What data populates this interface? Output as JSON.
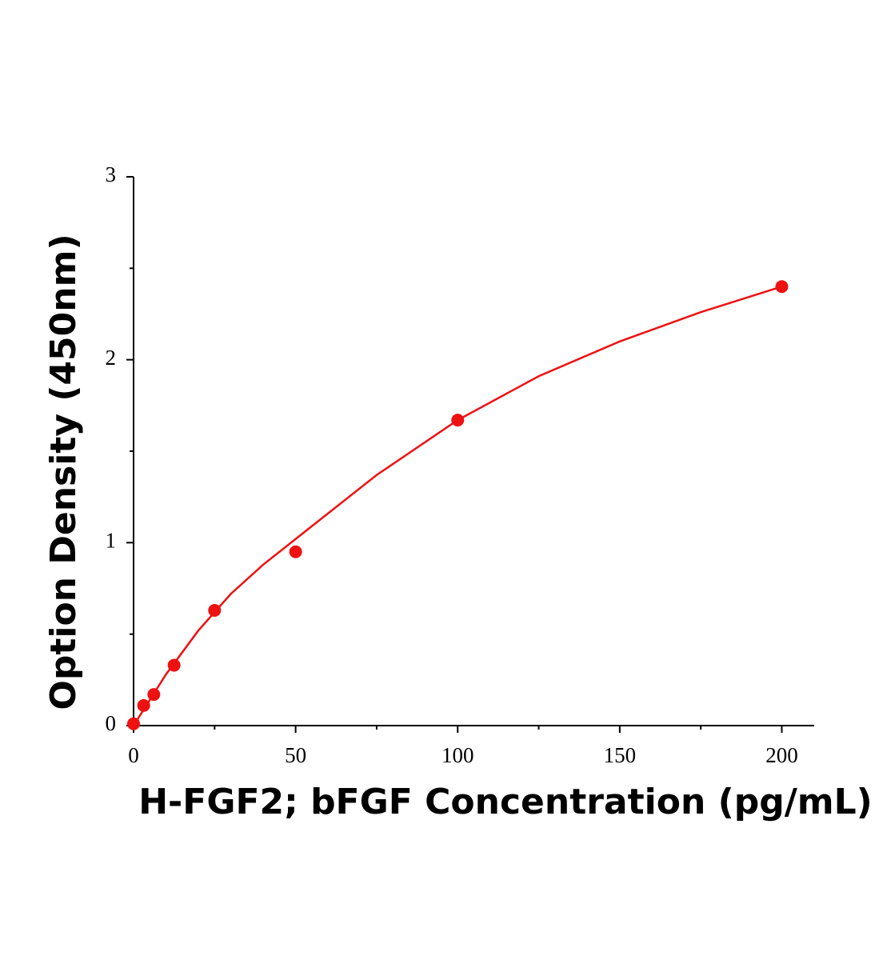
{
  "chart_data": {
    "type": "scatter",
    "x_label": "H-FGF2;  bFGF Concentration (pg/mL)",
    "y_label": "Option Density (450nm)",
    "xlim": [
      0,
      210
    ],
    "ylim": [
      0,
      3
    ],
    "xticks": [
      0,
      50,
      100,
      150,
      200
    ],
    "yticks": [
      0,
      1,
      2,
      3
    ],
    "xminorticks": [
      25,
      75,
      125,
      175
    ],
    "yminorticks": [
      0.5,
      1.5,
      2.5
    ],
    "series": [
      {
        "type": "scatter",
        "color": "#ee1111",
        "x": [
          0,
          3.125,
          6.25,
          12.5,
          25,
          50,
          100,
          200
        ],
        "values": [
          0.01,
          0.11,
          0.17,
          0.33,
          0.63,
          0.95,
          1.67,
          2.4
        ]
      },
      {
        "type": "line",
        "color": "#ee1111",
        "x": [
          0,
          5,
          10,
          20,
          30,
          40,
          50,
          75,
          100,
          125,
          150,
          175,
          200
        ],
        "values": [
          0,
          0.14,
          0.28,
          0.52,
          0.72,
          0.88,
          1.02,
          1.37,
          1.67,
          1.91,
          2.1,
          2.26,
          2.4
        ]
      }
    ]
  }
}
